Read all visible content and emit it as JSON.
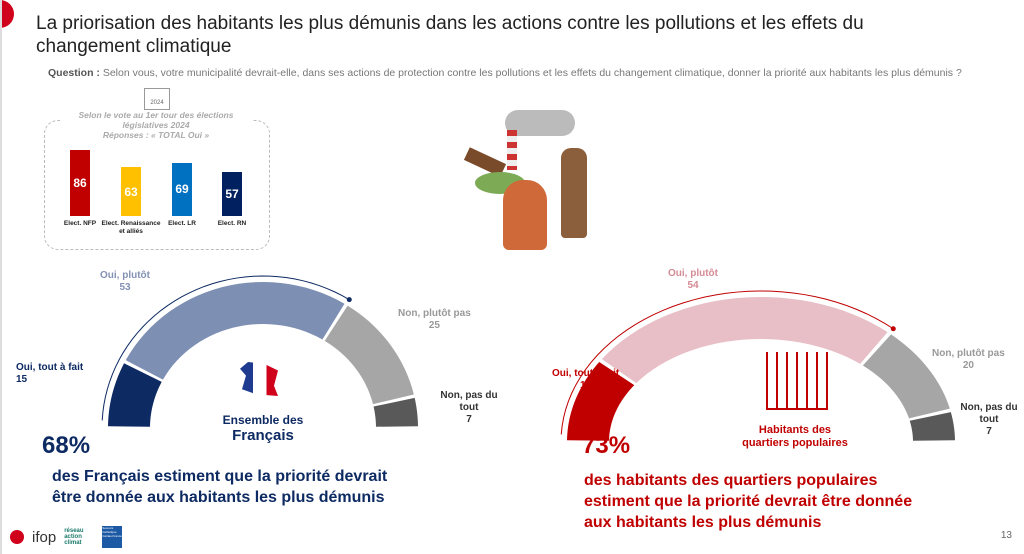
{
  "title": "La priorisation des habitants les plus démunis dans les actions contre les pollutions et les effets du changement climatique",
  "question_label": "Question :",
  "question": "Selon vous, votre municipalité devrait-elle, dans ses actions de protection contre les pollutions et les effets du changement climatique, donner la priorité aux habitants les plus démunis ?",
  "box": {
    "year": "2024",
    "header": "Selon le vote au 1er tour des élections législatives 2024",
    "subheader": "Réponses : « TOTAL Oui »"
  },
  "chart_data": [
    {
      "type": "bar",
      "title": "Selon le vote au 1er tour des élections législatives 2024 — Réponses : « TOTAL Oui »",
      "categories": [
        "Elect. NFP",
        "Elect. Renaissance et alliés",
        "Elect. LR",
        "Elect. RN"
      ],
      "values": [
        86,
        63,
        69,
        57
      ],
      "colors": [
        "#c00000",
        "#ffc000",
        "#0070c0",
        "#002060"
      ],
      "ylim": [
        0,
        100
      ]
    },
    {
      "type": "pie",
      "subtype": "half-donut",
      "title": "Ensemble des Français",
      "categories": [
        "Oui, tout à fait",
        "Oui, plutôt",
        "Non, plutôt pas",
        "Non, pas du tout"
      ],
      "values": [
        15,
        53,
        25,
        7
      ],
      "colors": [
        "#0d2a63",
        "#7d8fb3",
        "#a6a6a6",
        "#595959"
      ],
      "total_oui": "68%"
    },
    {
      "type": "pie",
      "subtype": "half-donut",
      "title": "Habitants des quartiers populaires",
      "categories": [
        "Oui, tout à fait",
        "Oui, plutôt",
        "Non, plutôt pas",
        "Non, pas du tout"
      ],
      "values": [
        19,
        54,
        20,
        7
      ],
      "colors": [
        "#c00000",
        "#e8bfc6",
        "#a6a6a6",
        "#595959"
      ],
      "total_oui": "73%"
    }
  ],
  "left": {
    "center1": "Ensemble des",
    "center2": "Français",
    "big": "68%",
    "sub1": "des Français estiment que la priorité devrait",
    "sub2": "être donnée aux habitants les plus démunis"
  },
  "right": {
    "center1": "Habitants des",
    "center2": "quartiers populaires",
    "big": "73%",
    "sub1": "des habitants des quartiers populaires",
    "sub2": "estiment que la priorité devrait être donnée",
    "sub3": "aux habitants les plus démunis"
  },
  "footer": {
    "logo": "ifop",
    "partner1": "réseau action climat",
    "partner2": "Secours Catholique Caritas France",
    "page": "13"
  }
}
